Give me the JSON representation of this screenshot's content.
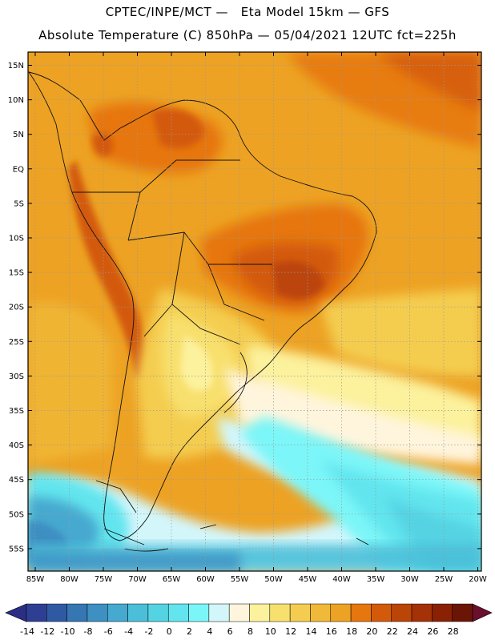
{
  "header": {
    "line1": "CPTEC/INPE/MCT —   Eta Model 15km — GFS",
    "line2": "Absolute Temperature (C) 850hPa — 05/04/2021 12UTC fct=225h"
  },
  "map": {
    "lat_labels": [
      "15N",
      "10N",
      "5N",
      "EQ",
      "5S",
      "10S",
      "15S",
      "20S",
      "25S",
      "30S",
      "35S",
      "40S",
      "45S",
      "50S",
      "55S"
    ],
    "lon_labels": [
      "85W",
      "80W",
      "75W",
      "70W",
      "65W",
      "60W",
      "55W",
      "50W",
      "45W",
      "40W",
      "35W",
      "30W",
      "25W",
      "20W"
    ],
    "colors": {
      "frame": "#000000",
      "grid": "#9a9a9a",
      "coast": "#111111"
    }
  },
  "colorbar": {
    "labels": [
      "-14",
      "-12",
      "-10",
      "-8",
      "-6",
      "-4",
      "-2",
      "0",
      "2",
      "4",
      "6",
      "8",
      "10",
      "12",
      "14",
      "16",
      "18",
      "20",
      "22",
      "24",
      "26",
      "28"
    ],
    "colors": [
      "#2e3f93",
      "#2f5aa3",
      "#3676b3",
      "#3e8fc2",
      "#46a9cf",
      "#4bbfd9",
      "#54d3e3",
      "#62e5ee",
      "#7bf6f8",
      "#d3f6fb",
      "#fff5dd",
      "#fcf19c",
      "#f8e06e",
      "#f4cd50",
      "#f1b939",
      "#eda223",
      "#e6760e",
      "#d35a0a",
      "#bb4407",
      "#a53106",
      "#8a2105",
      "#6b1506"
    ],
    "under_color": "#2c2e86",
    "over_color": "#6a0f2c"
  }
}
